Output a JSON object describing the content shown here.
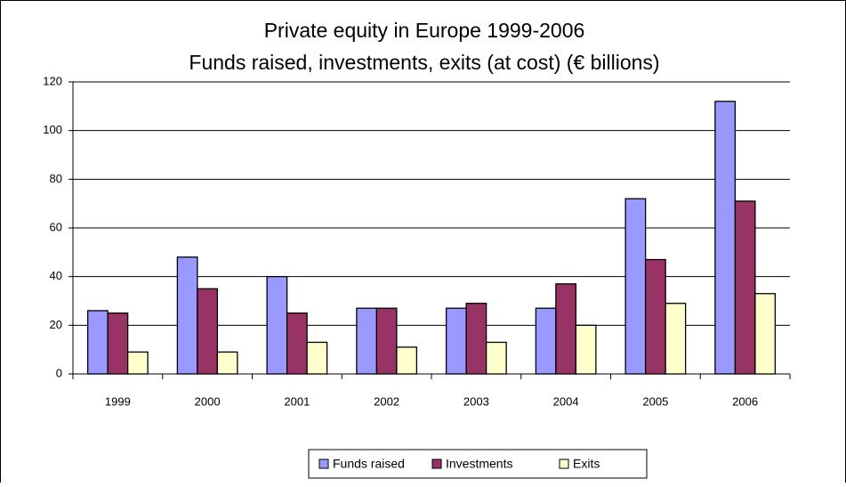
{
  "chart_data": {
    "type": "bar",
    "title": "Private equity in Europe 1999-2006",
    "subtitle": "Funds raised, investments, exits (at cost) (€ billions)",
    "categories": [
      "1999",
      "2000",
      "2001",
      "2002",
      "2003",
      "2004",
      "2005",
      "2006"
    ],
    "series": [
      {
        "name": "Funds raised",
        "color": "#9999ff",
        "values": [
          26,
          48,
          40,
          27,
          27,
          27,
          72,
          112
        ]
      },
      {
        "name": "Investments",
        "color": "#993366",
        "values": [
          25,
          35,
          25,
          27,
          29,
          37,
          47,
          71
        ]
      },
      {
        "name": "Exits",
        "color": "#ffffcc",
        "values": [
          9,
          9,
          13,
          11,
          13,
          20,
          29,
          33
        ]
      }
    ],
    "ylim": [
      0,
      120
    ],
    "yticks": [
      0,
      20,
      40,
      60,
      80,
      100,
      120
    ],
    "grid": true,
    "legend": "bottom"
  }
}
